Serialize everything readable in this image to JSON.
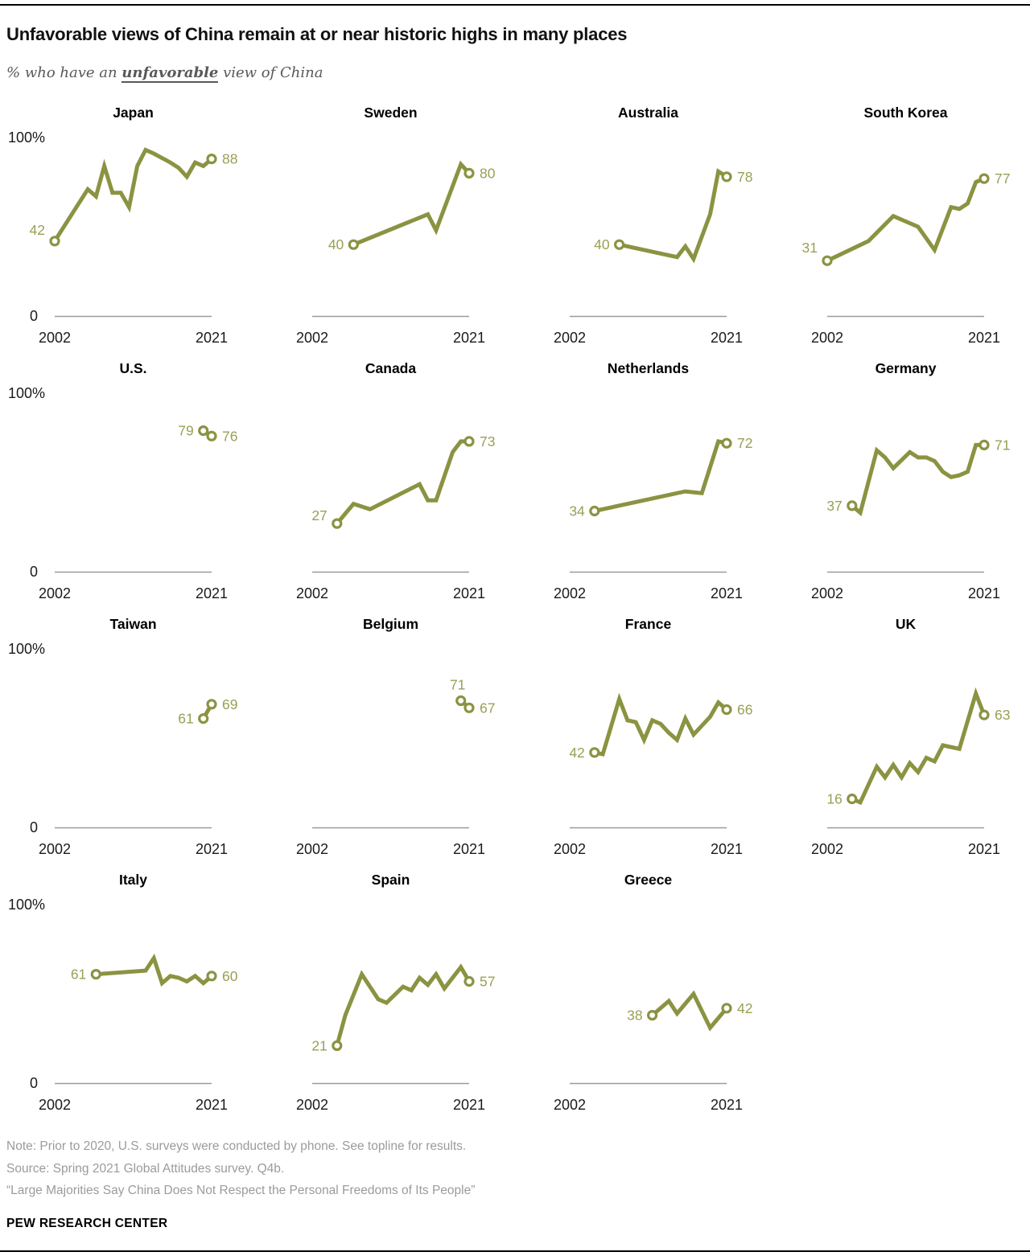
{
  "page": {
    "title": "Unfavorable views of China remain at or near historic highs in many places",
    "subtitle_prefix": "% who have an ",
    "subtitle_emphasis": "unfavorable",
    "subtitle_suffix": " view of China"
  },
  "colors": {
    "line": "#8b9342",
    "value_label": "#9aa054",
    "axis_line": "#9b9b9b",
    "tick_text": "#1a1a1a",
    "title_text": "#000000"
  },
  "chart_data": {
    "type": "line",
    "unit": "% unfavorable view of China",
    "x_range": [
      2002,
      2021
    ],
    "y_range": [
      0,
      100
    ],
    "axis": {
      "y_top_label": "100%",
      "y_bottom_label": "0",
      "x_start_label": "2002",
      "x_end_label": "2021"
    },
    "charts": [
      {
        "country": "Japan",
        "start_label": "42",
        "end_label": "88",
        "start_label_offset_y": -14,
        "series": [
          [
            2002,
            42
          ],
          [
            2006,
            71
          ],
          [
            2007,
            67
          ],
          [
            2008,
            84
          ],
          [
            2009,
            69
          ],
          [
            2010,
            69
          ],
          [
            2011,
            61
          ],
          [
            2012,
            84
          ],
          [
            2013,
            93
          ],
          [
            2014,
            91
          ],
          [
            2016,
            86
          ],
          [
            2017,
            83
          ],
          [
            2018,
            78
          ],
          [
            2019,
            86
          ],
          [
            2020,
            84
          ],
          [
            2021,
            88
          ]
        ]
      },
      {
        "country": "Sweden",
        "start_label": "40",
        "end_label": "80",
        "series": [
          [
            2007,
            40
          ],
          [
            2016,
            57
          ],
          [
            2017,
            48
          ],
          [
            2020,
            85
          ],
          [
            2021,
            80
          ]
        ]
      },
      {
        "country": "Australia",
        "start_label": "40",
        "end_label": "78",
        "series": [
          [
            2008,
            40
          ],
          [
            2013,
            35
          ],
          [
            2015,
            33
          ],
          [
            2016,
            39
          ],
          [
            2017,
            32
          ],
          [
            2019,
            57
          ],
          [
            2020,
            81
          ],
          [
            2021,
            78
          ]
        ]
      },
      {
        "country": "South Korea",
        "start_label": "31",
        "end_label": "77",
        "start_label_offset_y": -16,
        "series": [
          [
            2002,
            31
          ],
          [
            2007,
            42
          ],
          [
            2010,
            56
          ],
          [
            2013,
            50
          ],
          [
            2015,
            37
          ],
          [
            2017,
            61
          ],
          [
            2018,
            60
          ],
          [
            2019,
            63
          ],
          [
            2020,
            75
          ],
          [
            2021,
            77
          ]
        ]
      },
      {
        "country": "U.S.",
        "start_label": "79",
        "end_label": "76",
        "series": [
          [
            2020,
            79
          ],
          [
            2021,
            76
          ]
        ]
      },
      {
        "country": "Canada",
        "start_label": "27",
        "end_label": "73",
        "start_label_offset_y": -10,
        "series": [
          [
            2005,
            27
          ],
          [
            2007,
            38
          ],
          [
            2009,
            35
          ],
          [
            2015,
            49
          ],
          [
            2016,
            40
          ],
          [
            2017,
            40
          ],
          [
            2019,
            67
          ],
          [
            2020,
            73
          ],
          [
            2021,
            73
          ]
        ]
      },
      {
        "country": "Netherlands",
        "start_label": "34",
        "end_label": "72",
        "series": [
          [
            2005,
            34
          ],
          [
            2016,
            45
          ],
          [
            2018,
            44
          ],
          [
            2020,
            73
          ],
          [
            2021,
            72
          ]
        ]
      },
      {
        "country": "Germany",
        "start_label": "37",
        "end_label": "71",
        "series": [
          [
            2005,
            37
          ],
          [
            2006,
            33
          ],
          [
            2008,
            68
          ],
          [
            2009,
            64
          ],
          [
            2010,
            58
          ],
          [
            2012,
            67
          ],
          [
            2013,
            64
          ],
          [
            2014,
            64
          ],
          [
            2015,
            62
          ],
          [
            2016,
            56
          ],
          [
            2017,
            53
          ],
          [
            2018,
            54
          ],
          [
            2019,
            56
          ],
          [
            2020,
            71
          ],
          [
            2021,
            71
          ]
        ]
      },
      {
        "country": "Taiwan",
        "start_label": "61",
        "end_label": "69",
        "series": [
          [
            2020,
            61
          ],
          [
            2021,
            69
          ]
        ]
      },
      {
        "country": "Belgium",
        "start_label": "71",
        "end_label": "67",
        "start_label_position": "above",
        "series": [
          [
            2020,
            71
          ],
          [
            2021,
            67
          ]
        ]
      },
      {
        "country": "France",
        "start_label": "42",
        "end_label": "66",
        "series": [
          [
            2005,
            42
          ],
          [
            2006,
            41
          ],
          [
            2008,
            72
          ],
          [
            2009,
            60
          ],
          [
            2010,
            59
          ],
          [
            2011,
            49
          ],
          [
            2012,
            60
          ],
          [
            2013,
            58
          ],
          [
            2014,
            53
          ],
          [
            2015,
            49
          ],
          [
            2016,
            61
          ],
          [
            2017,
            52
          ],
          [
            2019,
            62
          ],
          [
            2020,
            70
          ],
          [
            2021,
            66
          ]
        ]
      },
      {
        "country": "UK",
        "start_label": "16",
        "end_label": "63",
        "series": [
          [
            2005,
            16
          ],
          [
            2006,
            14
          ],
          [
            2008,
            34
          ],
          [
            2009,
            28
          ],
          [
            2010,
            35
          ],
          [
            2011,
            28
          ],
          [
            2012,
            36
          ],
          [
            2013,
            31
          ],
          [
            2014,
            39
          ],
          [
            2015,
            37
          ],
          [
            2016,
            46
          ],
          [
            2018,
            44
          ],
          [
            2020,
            75
          ],
          [
            2021,
            63
          ]
        ]
      },
      {
        "country": "Italy",
        "start_label": "61",
        "end_label": "60",
        "series": [
          [
            2007,
            61
          ],
          [
            2013,
            63
          ],
          [
            2014,
            70
          ],
          [
            2015,
            56
          ],
          [
            2016,
            60
          ],
          [
            2017,
            59
          ],
          [
            2018,
            57
          ],
          [
            2019,
            60
          ],
          [
            2020,
            56
          ],
          [
            2021,
            60
          ]
        ]
      },
      {
        "country": "Spain",
        "start_label": "21",
        "end_label": "57",
        "series": [
          [
            2005,
            21
          ],
          [
            2006,
            38
          ],
          [
            2008,
            61
          ],
          [
            2010,
            47
          ],
          [
            2011,
            45
          ],
          [
            2013,
            54
          ],
          [
            2014,
            52
          ],
          [
            2015,
            59
          ],
          [
            2016,
            55
          ],
          [
            2017,
            61
          ],
          [
            2018,
            53
          ],
          [
            2020,
            65
          ],
          [
            2021,
            57
          ]
        ]
      },
      {
        "country": "Greece",
        "start_label": "38",
        "end_label": "42",
        "series": [
          [
            2012,
            38
          ],
          [
            2014,
            46
          ],
          [
            2015,
            39
          ],
          [
            2017,
            50
          ],
          [
            2019,
            31
          ],
          [
            2021,
            42
          ]
        ]
      }
    ]
  },
  "footer": {
    "note": "Note: Prior to 2020, U.S. surveys were conducted by phone. See topline for results.",
    "source": "Source: Spring 2021 Global Attitudes survey. Q4b.",
    "quote": "“Large Majorities Say China Does Not Respect the Personal Freedoms of Its People”",
    "brand": "PEW RESEARCH CENTER"
  }
}
